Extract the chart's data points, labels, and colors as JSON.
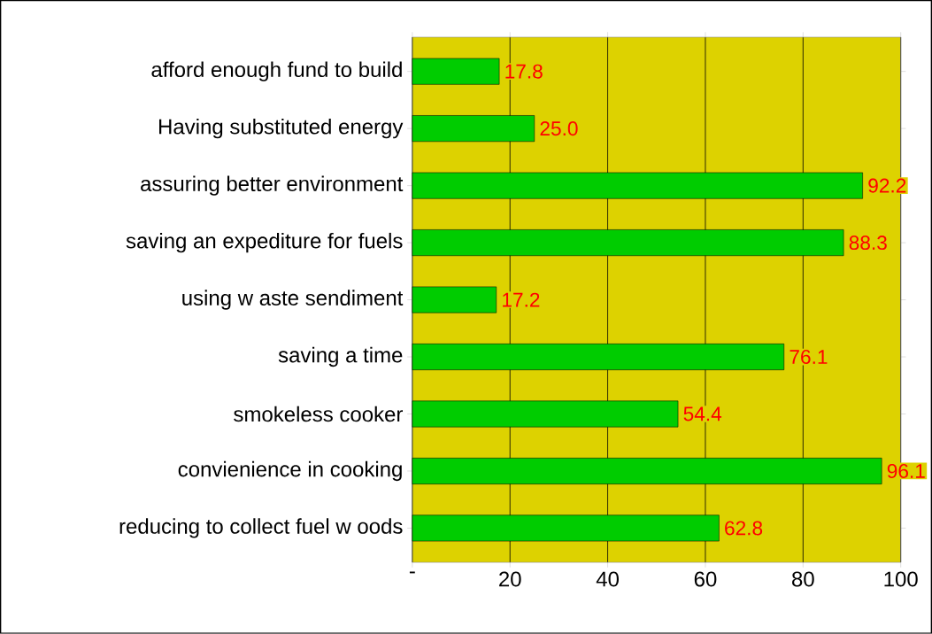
{
  "chart_data": {
    "type": "bar",
    "orientation": "horizontal",
    "categories": [
      "afford enough fund to build",
      "Having substituted energy",
      "assuring  better environment",
      "saving an expediture for fuels",
      "using w aste sendiment",
      "saving a time",
      "smokeless cooker",
      "convienience in cooking",
      "reducing to collect fuel w oods"
    ],
    "values": [
      17.8,
      25.0,
      92.2,
      88.3,
      17.2,
      76.1,
      54.4,
      96.1,
      62.8
    ],
    "value_labels": [
      "17.8",
      "25.0",
      "92.2",
      "88.3",
      "17.2",
      "76.1",
      "54.4",
      "96.1",
      "62.8"
    ],
    "color": "#00cc00",
    "xlim": [
      0,
      100
    ],
    "xticks": [
      {
        "value": 0,
        "label": "-"
      },
      20,
      40,
      60,
      80,
      100
    ],
    "grid": "x"
  }
}
